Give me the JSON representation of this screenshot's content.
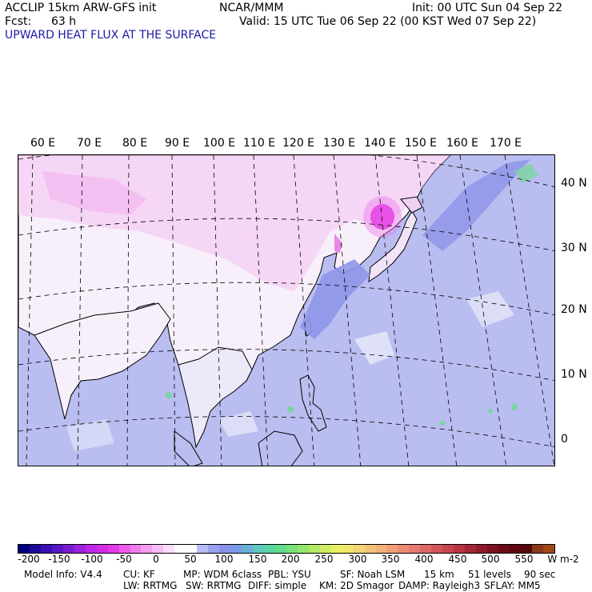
{
  "header": {
    "line1_left": "ACCLIP 15km ARW-GFS init",
    "line1_center": "NCAR/MMM",
    "line1_right": "Init: 00 UTC Sun 04 Sep 22",
    "fcst_label": "Fcst:",
    "fcst_value": "63 h",
    "valid": "Valid: 15 UTC Tue 06 Sep 22 (00 KST Wed 07 Sep 22)",
    "field_title": "UPWARD HEAT FLUX AT THE SURFACE"
  },
  "map": {
    "lon_labels": [
      "60 E",
      "70 E",
      "80 E",
      "90 E",
      "100 E",
      "110 E",
      "120 E",
      "130 E",
      "140 E",
      "150 E",
      "160 E",
      "170 E"
    ],
    "lat_labels": [
      "40 N",
      "30 N",
      "20 N",
      "10 N",
      "0"
    ],
    "colors": {
      "land_low": "#f7f0fa",
      "land_neg": "#f6c8f2",
      "land_strong": "#e22ee0",
      "ocean": "#b9bdf0",
      "ocean_mid": "#8f96e8",
      "ocean_high": "#7ad6a0",
      "coast": "#000000"
    }
  },
  "colorbar": {
    "ticks": [
      "-200",
      "-150",
      "-100",
      "-50",
      "0",
      "50",
      "100",
      "150",
      "200",
      "250",
      "300",
      "350",
      "400",
      "450",
      "500",
      "550"
    ],
    "units": "W m-2",
    "colors": [
      "#000080",
      "#1c0a9a",
      "#3a10b2",
      "#5816c4",
      "#7a1cd2",
      "#9c22de",
      "#bb28e6",
      "#d22ce8",
      "#e23ae6",
      "#ec5ce8",
      "#f07cec",
      "#f49cf0",
      "#f8bcf4",
      "#fcdcf8",
      "#ffffff",
      "#ffffff",
      "#b8bcf4",
      "#9aa2ee",
      "#8890ea",
      "#7a98e6",
      "#6cb0d8",
      "#60c8c0",
      "#5ad6a4",
      "#62dc8e",
      "#78e27a",
      "#94e66c",
      "#b4ea66",
      "#d0ee64",
      "#e8f066",
      "#f2e66c",
      "#f4d474",
      "#f4c27a",
      "#f2b07a",
      "#f09e78",
      "#ec8c74",
      "#e67a6e",
      "#de6866",
      "#d4565c",
      "#c84450",
      "#b83444",
      "#a42636",
      "#901a2a",
      "#7c1220",
      "#6c0c18",
      "#5e0810",
      "#540608",
      "#8a3a1a",
      "#a04a1a"
    ]
  },
  "model_info": {
    "line1": [
      "Model Info: V4.4",
      "CU: KF",
      "MP: WDM 6class",
      "PBL: YSU",
      "SF: Noah LSM",
      "15 km",
      "51 levels",
      "90 sec"
    ],
    "line2": [
      "LW: RRTMG",
      "SW: RRTMG",
      "DIFF: simple",
      "KM: 2D Smagor",
      "DAMP: Rayleigh3",
      "SFLAY: MM5"
    ]
  }
}
